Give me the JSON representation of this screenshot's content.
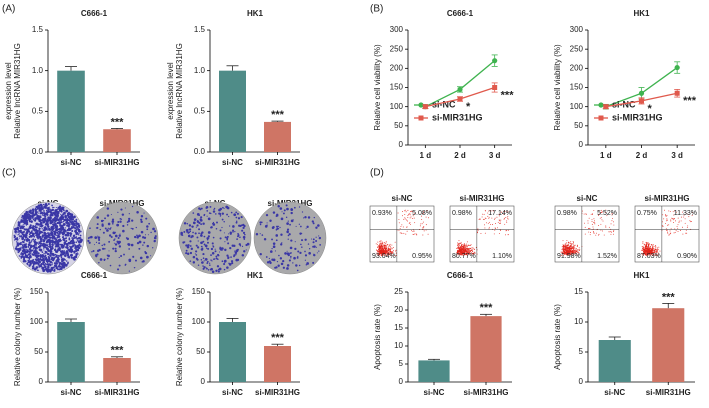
{
  "panel_labels": [
    "(A)",
    "(B)",
    "(C)",
    "(D)"
  ],
  "colony_images": [
    {
      "label": "si-NC"
    },
    {
      "label": "si-MIR31HG"
    },
    {
      "label": "si-NC"
    },
    {
      "label": "si-MIR31HG"
    }
  ],
  "flow_plots": [
    {
      "label": "si-NC",
      "quadrants": [
        "0.93%",
        "5.08%",
        "93.04%",
        "0.95%"
      ]
    },
    {
      "label": "si-MIR31HG",
      "quadrants": [
        "0.98%",
        "17.14%",
        "80.77%",
        "1.10%"
      ]
    },
    {
      "label": "si-NC",
      "quadrants": [
        "0.98%",
        "5.52%",
        "91.98%",
        "1.52%"
      ]
    },
    {
      "label": "si-MIR31HG",
      "quadrants": [
        "0.75%",
        "11.33%",
        "87.03%",
        "0.90%"
      ]
    }
  ],
  "chart_data": [
    {
      "type": "bar",
      "title": "C666-1",
      "ylabel": [
        "Relative lncRNA MIR31HG",
        "expression level"
      ],
      "categories": [
        "si-NC",
        "si-MIR31HG"
      ],
      "values": [
        1.0,
        0.28
      ],
      "errors": [
        0.05,
        0.01
      ],
      "colors": [
        "#4f8c88",
        "#cf7565"
      ],
      "ylim": [
        0,
        1.5
      ],
      "yticks": [
        {
          "value": 0,
          "label": "0.0"
        },
        0.5,
        {
          "value": 1,
          "label": "1.0"
        },
        1.5
      ],
      "annotations": [
        "***"
      ]
    },
    {
      "type": "bar",
      "title": "HK1",
      "ylabel": [
        "Relative lncRNA MIR31HG",
        "expression level"
      ],
      "categories": [
        "si-NC",
        "si-MIR31HG"
      ],
      "values": [
        1.0,
        0.37
      ],
      "errors": [
        0.06,
        0.01
      ],
      "colors": [
        "#4f8c88",
        "#cf7565"
      ],
      "ylim": [
        0,
        1.5
      ],
      "yticks": [
        {
          "value": 0,
          "label": "0.0"
        },
        0.5,
        {
          "value": 1,
          "label": "1.0"
        },
        1.5
      ],
      "annotations": [
        "***"
      ]
    },
    {
      "type": "line",
      "title": "C666-1",
      "ylabel": [
        "Relative cell viability (%)"
      ],
      "categories": [
        "1 d",
        "2 d",
        "3 d"
      ],
      "ylim": [
        0,
        300
      ],
      "yticks": [
        0,
        50,
        100,
        150,
        200,
        250,
        300
      ],
      "legend": "lower left",
      "annotations": [
        "*",
        "***"
      ],
      "series": [
        {
          "name": "si-NC",
          "color": "#3fb34f",
          "values": [
            100,
            145,
            220
          ],
          "errors": [
            5,
            7,
            15
          ]
        },
        {
          "name": "si-MIR31HG",
          "color": "#e0594c",
          "values": [
            100,
            120,
            150
          ],
          "errors": [
            5,
            6,
            12
          ]
        }
      ]
    },
    {
      "type": "line",
      "title": "HK1",
      "ylabel": [
        "Relative cell viability (%)"
      ],
      "categories": [
        "1 d",
        "2 d",
        "3 d"
      ],
      "ylim": [
        0,
        300
      ],
      "yticks": [
        0,
        50,
        100,
        150,
        200,
        250,
        300
      ],
      "legend": "lower left",
      "annotations": [
        "*",
        "***"
      ],
      "series": [
        {
          "name": "si-NC",
          "color": "#3fb34f",
          "values": [
            100,
            135,
            202
          ],
          "errors": [
            6,
            15,
            15
          ]
        },
        {
          "name": "si-MIR31HG",
          "color": "#e0594c",
          "values": [
            100,
            115,
            135
          ],
          "errors": [
            5,
            8,
            10
          ]
        }
      ]
    },
    {
      "type": "bar",
      "title": "C666-1",
      "ylabel": [
        "Relative colony number (%)"
      ],
      "categories": [
        "si-NC",
        "si-MIR31HG"
      ],
      "values": [
        100,
        40
      ],
      "errors": [
        5,
        2
      ],
      "colors": [
        "#4f8c88",
        "#cf7565"
      ],
      "ylim": [
        0,
        150
      ],
      "yticks": [
        0,
        50,
        100,
        150
      ],
      "annotations": [
        "***"
      ]
    },
    {
      "type": "bar",
      "title": "HK1",
      "ylabel": [
        "Relative colony number (%)"
      ],
      "categories": [
        "si-NC",
        "si-MIR31HG"
      ],
      "values": [
        100,
        60
      ],
      "errors": [
        6,
        3
      ],
      "colors": [
        "#4f8c88",
        "#cf7565"
      ],
      "ylim": [
        0,
        150
      ],
      "yticks": [
        0,
        50,
        100,
        150
      ],
      "annotations": [
        "***"
      ]
    },
    {
      "type": "bar",
      "title": "C666-1",
      "ylabel": [
        "Apoptosis rate (%)"
      ],
      "categories": [
        "si-NC",
        "si-MIR31HG"
      ],
      "values": [
        6,
        18.3
      ],
      "errors": [
        0.3,
        0.5
      ],
      "colors": [
        "#4f8c88",
        "#cf7565"
      ],
      "ylim": [
        0,
        25
      ],
      "yticks": [
        0,
        5,
        10,
        15,
        20,
        25
      ],
      "annotations": [
        "***"
      ]
    },
    {
      "type": "bar",
      "title": "HK1",
      "ylabel": [
        "Apoptosis rate (%)"
      ],
      "categories": [
        "si-NC",
        "si-MIR31HG"
      ],
      "values": [
        7,
        12.3
      ],
      "errors": [
        0.5,
        0.8
      ],
      "colors": [
        "#4f8c88",
        "#cf7565"
      ],
      "ylim": [
        0,
        15
      ],
      "yticks": [
        0,
        5,
        10,
        15
      ],
      "annotations": [
        "***"
      ]
    }
  ]
}
